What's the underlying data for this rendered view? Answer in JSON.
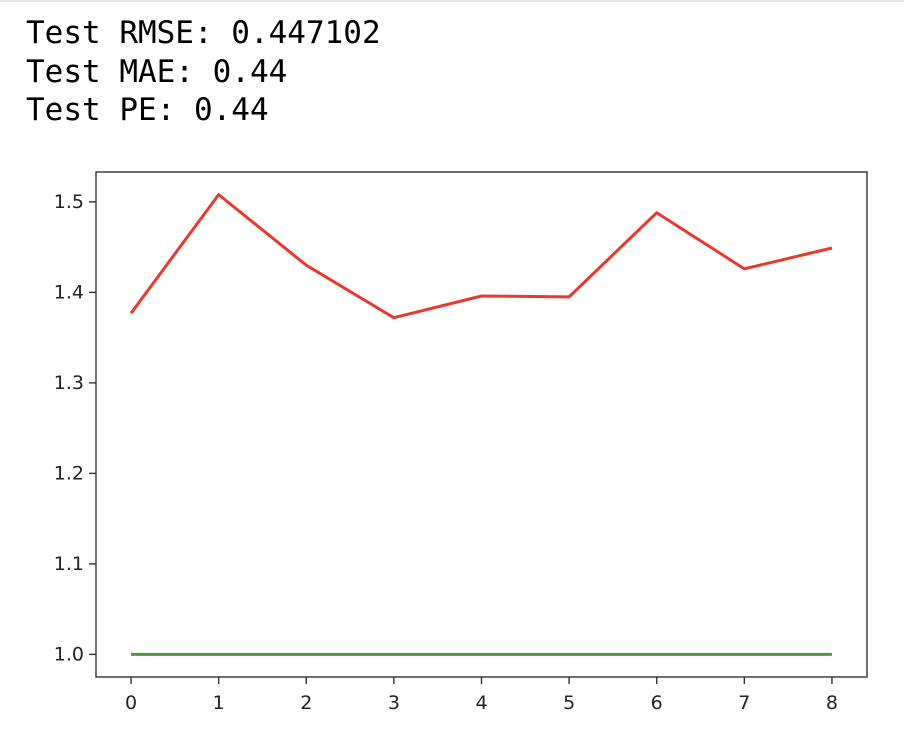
{
  "output": {
    "lines": [
      "Test RMSE: 0.447102",
      "Test MAE: 0.44",
      "Test PE: 0.44"
    ]
  },
  "chart_data": {
    "type": "line",
    "x": [
      0,
      1,
      2,
      3,
      4,
      5,
      6,
      7,
      8
    ],
    "series": [
      {
        "color": "#e8392f",
        "values": [
          1.377,
          1.508,
          1.43,
          1.372,
          1.396,
          1.395,
          1.488,
          1.426,
          1.449
        ]
      },
      {
        "color": "#4c9a3f",
        "values": [
          1.0,
          1.0,
          1.0,
          1.0,
          1.0,
          1.0,
          1.0,
          1.0,
          1.0
        ]
      }
    ],
    "xlim": [
      -0.4,
      8.4
    ],
    "ylim": [
      0.975,
      1.533
    ],
    "xticks": [
      0,
      1,
      2,
      3,
      4,
      5,
      6,
      7,
      8
    ],
    "yticks": [
      1.0,
      1.1,
      1.2,
      1.3,
      1.4,
      1.5
    ],
    "grid": false,
    "title": "",
    "xlabel": "",
    "ylabel": ""
  }
}
